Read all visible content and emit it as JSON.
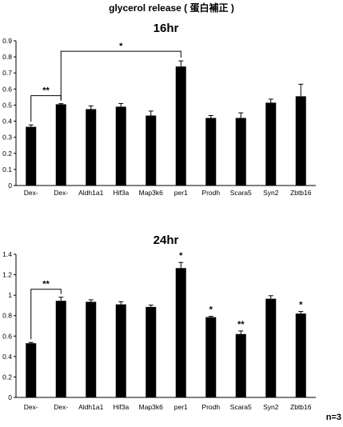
{
  "title": "glycerol release ( 蛋白補正 )",
  "note": "n=3",
  "chart_data": [
    {
      "type": "bar",
      "title": "16hr",
      "categories": [
        "Dex-",
        "Dex-",
        "Aldh1a1",
        "Hif3a",
        "Map3k6",
        "per1",
        "Prodh",
        "Scara5",
        "Syn2",
        "Zbtb16"
      ],
      "values": [
        0.365,
        0.505,
        0.475,
        0.49,
        0.435,
        0.74,
        0.42,
        0.42,
        0.515,
        0.555
      ],
      "errors": [
        0.012,
        0.004,
        0.02,
        0.02,
        0.028,
        0.035,
        0.015,
        0.032,
        0.022,
        0.075
      ],
      "ylim": [
        0,
        0.9
      ],
      "yticks": [
        "0",
        "0.1",
        "0.2",
        "0.3",
        "0.4",
        "0.5",
        "0.6",
        "0.7",
        "0.8",
        "0.9"
      ],
      "comparisons": [
        {
          "from": 0,
          "to": 1,
          "label": "**"
        },
        {
          "from": 1,
          "to": 5,
          "label": "*"
        }
      ],
      "bar_labels": []
    },
    {
      "type": "bar",
      "title": "24hr",
      "categories": [
        "Dex-",
        "Dex-",
        "Aldh1a1",
        "Hif3a",
        "Map3k6",
        "per1",
        "Prodh",
        "Scara5",
        "Syn2",
        "Zbtb16"
      ],
      "values": [
        0.53,
        0.945,
        0.935,
        0.91,
        0.885,
        1.265,
        0.785,
        0.62,
        0.965,
        0.82
      ],
      "errors": [
        0.008,
        0.035,
        0.02,
        0.025,
        0.018,
        0.055,
        0.008,
        0.03,
        0.03,
        0.02
      ],
      "ylim": [
        0,
        1.4
      ],
      "yticks": [
        "0",
        "0.2",
        "0.4",
        "0.6",
        "0.8",
        "1",
        "1.2",
        "1.4"
      ],
      "comparisons": [
        {
          "from": 0,
          "to": 1,
          "label": "**"
        }
      ],
      "bar_labels": [
        {
          "index": 5,
          "label": "*"
        },
        {
          "index": 6,
          "label": "*"
        },
        {
          "index": 7,
          "label": "**"
        },
        {
          "index": 9,
          "label": "*"
        }
      ]
    }
  ]
}
